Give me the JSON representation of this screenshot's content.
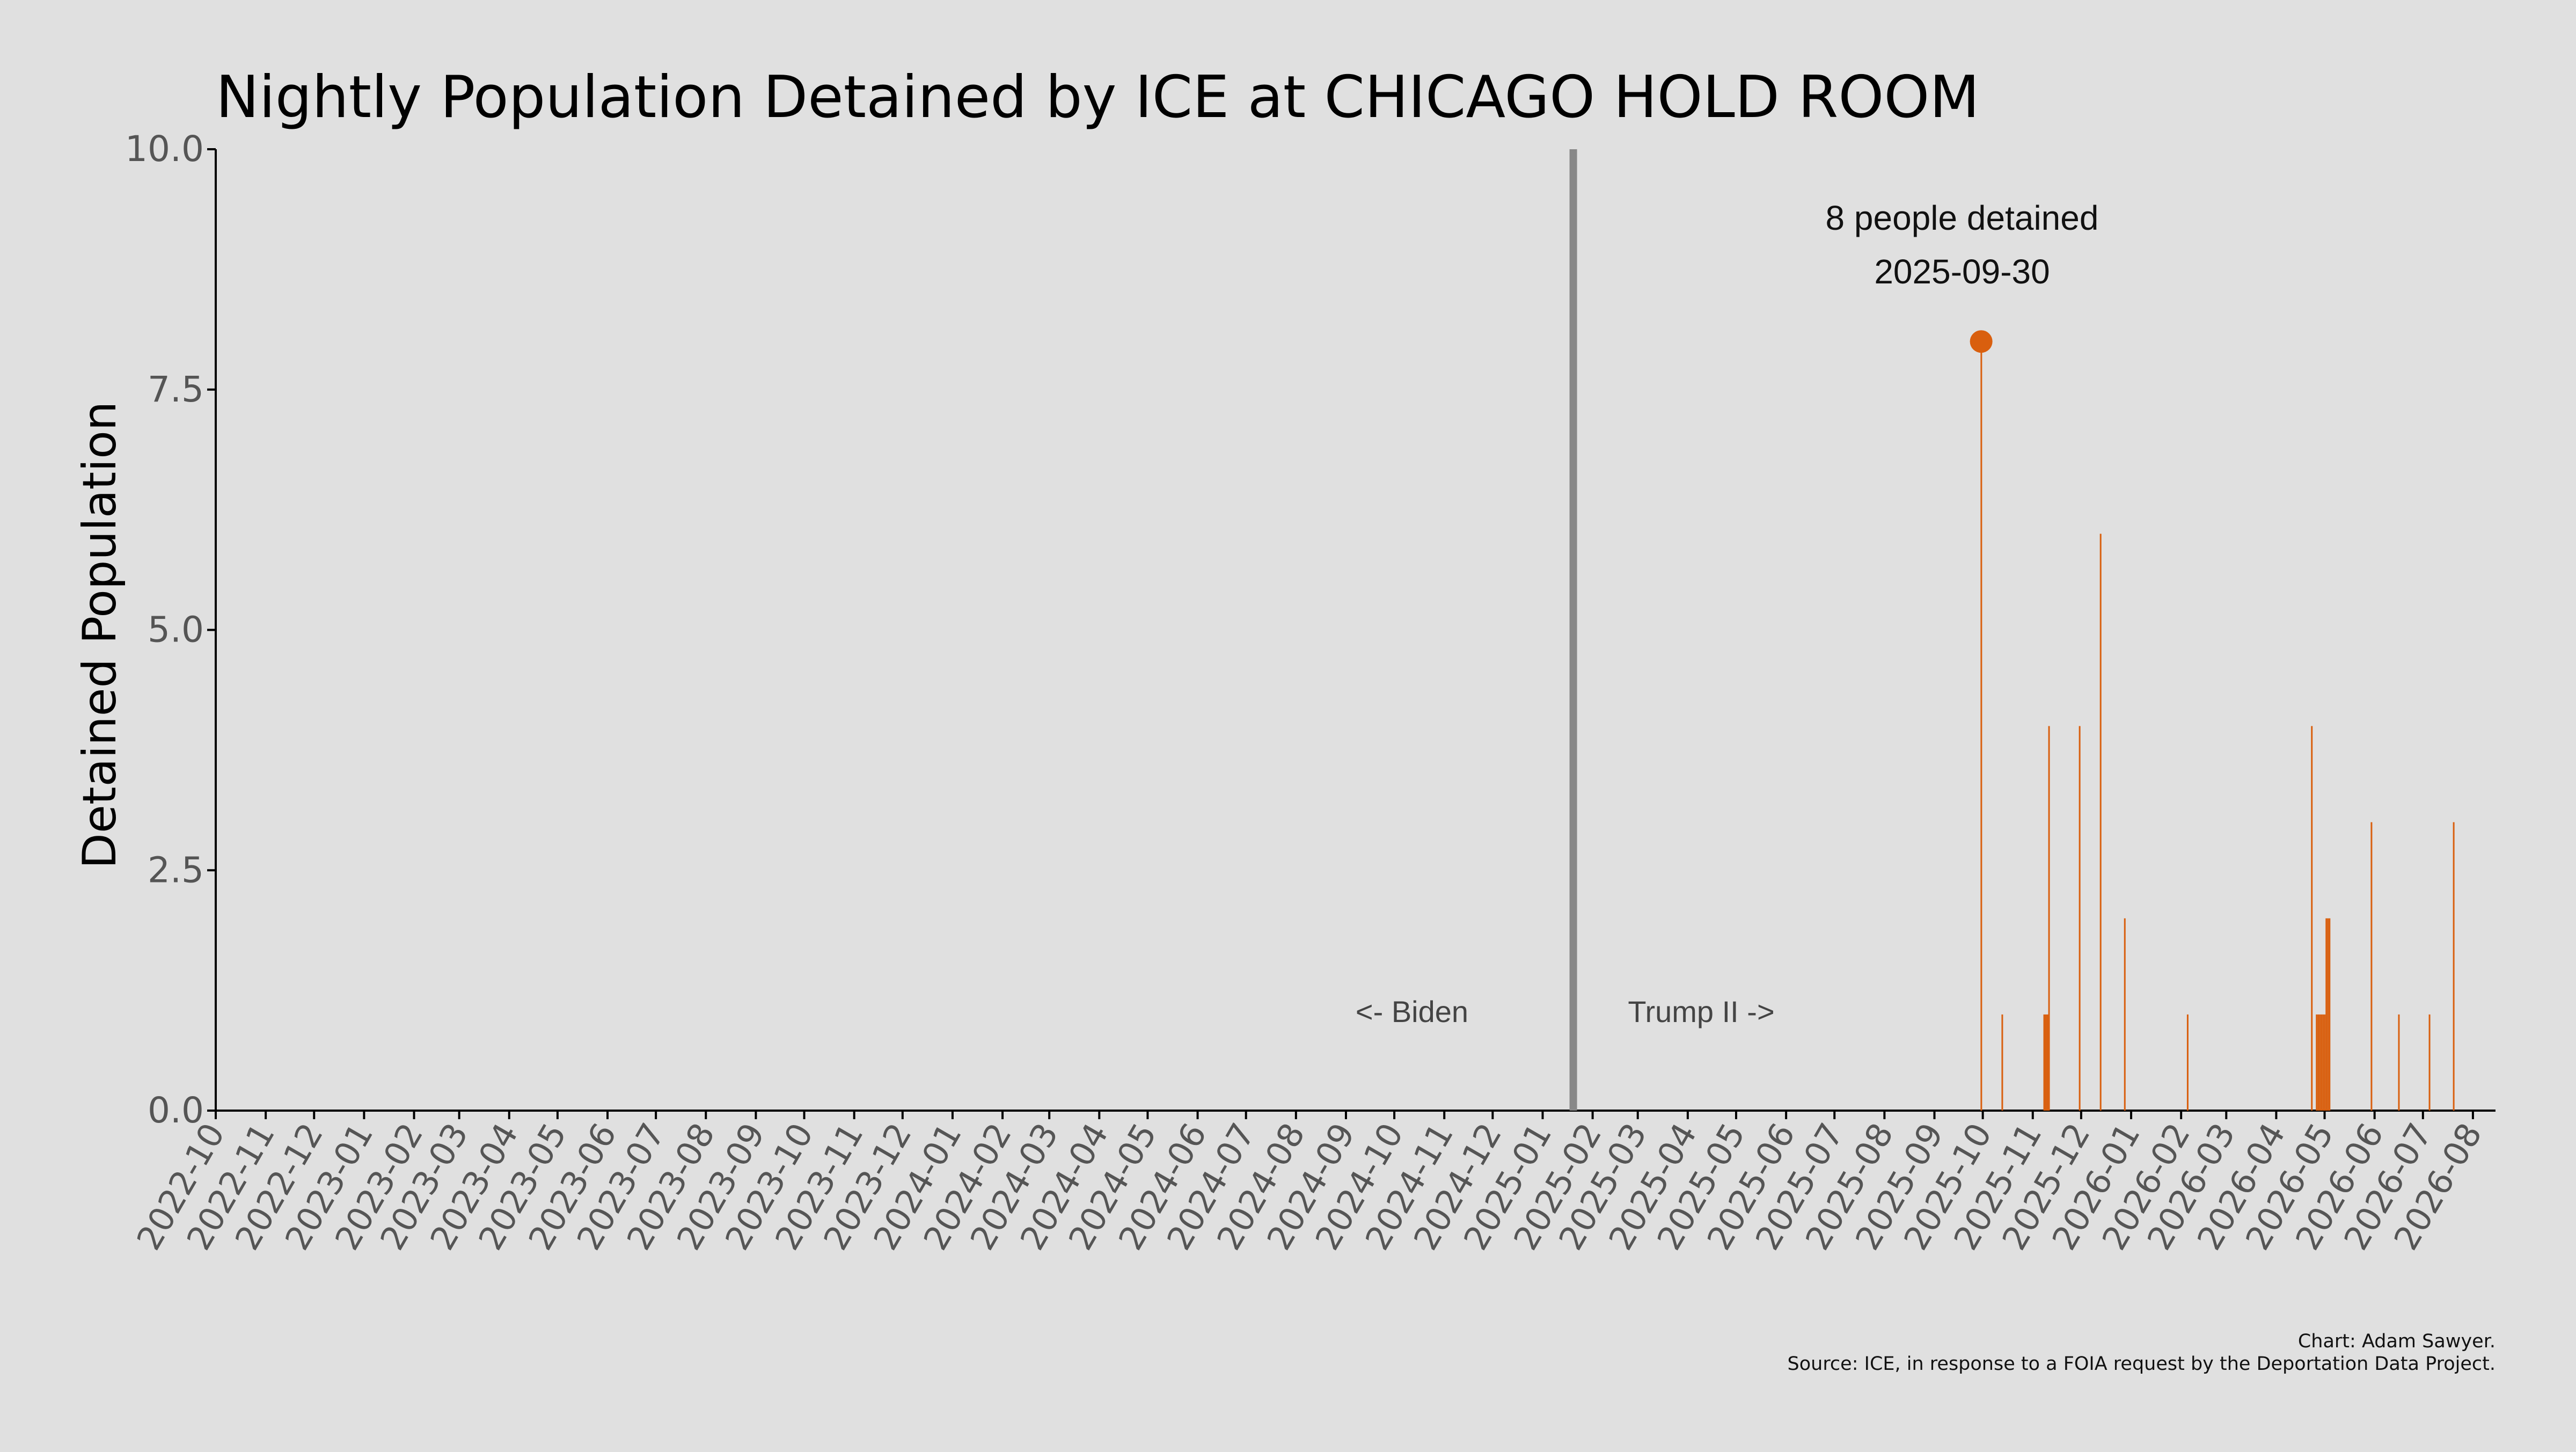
{
  "chart_data": {
    "type": "bar",
    "title": "Nightly Population Detained by ICE at CHICAGO HOLD ROOM",
    "xlabel": "",
    "ylabel": "Detained Population",
    "ylim": [
      0,
      10
    ],
    "xlim": [
      "2022-10-01",
      "2026-08-15"
    ],
    "yticks": [
      "0.0",
      "2.5",
      "5.0",
      "7.5",
      "10.0"
    ],
    "xtick_labels": [
      "2022-10",
      "2022-11",
      "2022-12",
      "2023-01",
      "2023-02",
      "2023-03",
      "2023-04",
      "2023-05",
      "2023-06",
      "2023-07",
      "2023-08",
      "2023-09",
      "2023-10",
      "2023-11",
      "2023-12",
      "2024-01",
      "2024-02",
      "2024-03",
      "2024-04",
      "2024-05",
      "2024-06",
      "2024-07",
      "2024-08",
      "2024-09",
      "2024-10",
      "2024-11",
      "2024-12",
      "2025-01",
      "2025-02",
      "2025-03",
      "2025-04",
      "2025-05",
      "2025-06",
      "2025-07",
      "2025-08",
      "2025-09",
      "2025-10",
      "2025-11",
      "2025-12",
      "2026-01",
      "2026-02",
      "2026-03",
      "2026-04",
      "2026-05",
      "2026-06",
      "2026-07",
      "2026-08"
    ],
    "series": [
      {
        "color": "#d95f0e",
        "x": [
          "2025-09-30",
          "2025-10-13",
          "2025-11-08",
          "2025-11-09",
          "2025-11-10",
          "2025-11-11",
          "2025-11-30",
          "2025-12-13",
          "2025-12-28",
          "2026-02-05",
          "2026-04-23",
          "2026-04-26",
          "2026-04-27",
          "2026-04-28",
          "2026-04-29",
          "2026-04-30",
          "2026-05-01",
          "2026-05-02",
          "2026-05-03",
          "2026-05-04",
          "2026-05-30",
          "2026-06-16",
          "2026-07-05",
          "2026-07-20"
        ],
        "values": [
          8,
          1,
          1,
          1,
          1,
          4,
          4,
          6,
          2,
          1,
          4,
          1,
          1,
          1,
          1,
          1,
          1,
          2,
          2,
          2,
          3,
          1,
          1,
          3
        ]
      }
    ],
    "reference_line": {
      "x": "2025-01-20",
      "color": "#888888"
    },
    "highlight": {
      "x": "2025-09-30",
      "value": 8,
      "line1": "8 people detained",
      "line2": "2025-09-30"
    },
    "era_labels": {
      "left": "<- Biden",
      "right": "Trump II ->"
    },
    "credit": {
      "line1": "Chart: Adam Sawyer.",
      "line2": "Source: ICE, in response to a FOIA request by the Deportation Data Project."
    },
    "grid": false,
    "legend": "none"
  }
}
